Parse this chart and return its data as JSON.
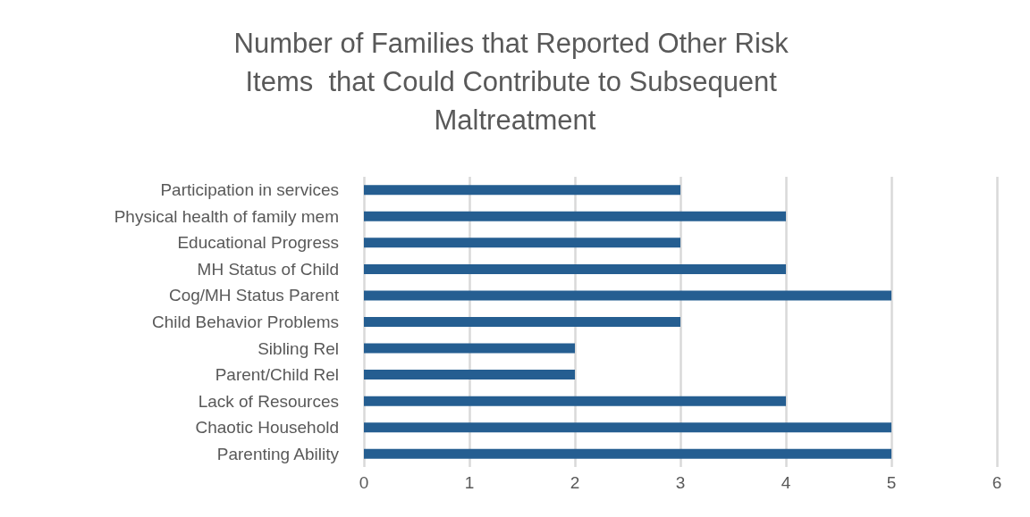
{
  "chart_data": {
    "type": "bar",
    "orientation": "horizontal",
    "title": "Number of Families that Reported Other Risk Items  that Could Contribute to Subsequent Maltreatment",
    "categories": [
      "Participation in services",
      "Physical health of family mem",
      "Educational Progress",
      "MH Status of Child",
      "Cog/MH Status Parent",
      "Child Behavior Problems",
      "Sibling Rel",
      "Parent/Child Rel",
      "Lack of Resources",
      "Chaotic Household",
      "Parenting Ability"
    ],
    "values": [
      3,
      4,
      3,
      4,
      5,
      3,
      2,
      2,
      4,
      5,
      5
    ],
    "color": "#255e91",
    "xlim": [
      0,
      6
    ],
    "xticks": [
      0,
      1,
      2,
      3,
      4,
      5,
      6
    ],
    "grid": "x"
  }
}
